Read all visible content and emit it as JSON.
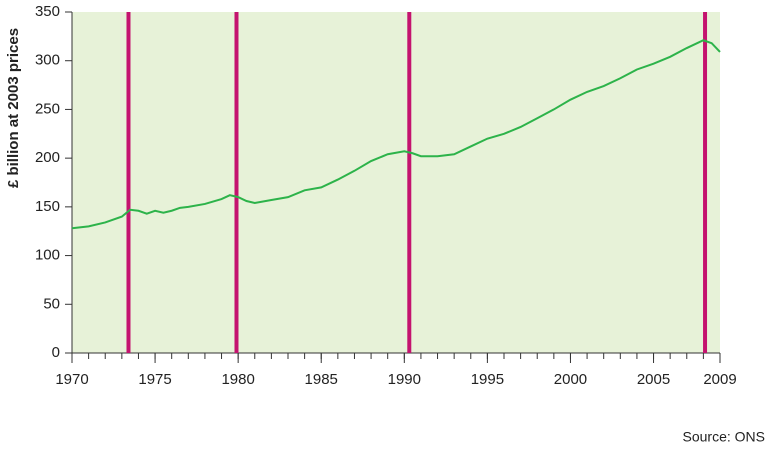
{
  "chart_data": {
    "type": "line",
    "y_label": "£ billion at 2003 prices",
    "source": "Source: ONS",
    "x": [
      1970,
      1971,
      1972,
      1973,
      1973.5,
      1974,
      1974.5,
      1975,
      1975.5,
      1976,
      1976.5,
      1977,
      1978,
      1979,
      1979.5,
      1980,
      1980.5,
      1981,
      1982,
      1983,
      1984,
      1985,
      1986,
      1987,
      1988,
      1989,
      1990,
      1990.5,
      1991,
      1992,
      1993,
      1994,
      1995,
      1996,
      1997,
      1998,
      1999,
      2000,
      2001,
      2002,
      2003,
      2004,
      2005,
      2006,
      2007,
      2008,
      2008.5,
      2009
    ],
    "series": [
      {
        "color": "#2db34a",
        "values": [
          128,
          130,
          134,
          140,
          147,
          146,
          143,
          146,
          144,
          146,
          149,
          150,
          153,
          158,
          162,
          160,
          156,
          154,
          157,
          160,
          167,
          170,
          178,
          187,
          197,
          204,
          207,
          205,
          202,
          202,
          204,
          212,
          220,
          225,
          232,
          241,
          250,
          260,
          268,
          274,
          282,
          291,
          297,
          304,
          313,
          321,
          318,
          309
        ]
      }
    ],
    "recession_lines": {
      "color": "#c4136f",
      "x": [
        1973.4,
        1979.9,
        1990.3,
        2008.1
      ]
    },
    "xlim": [
      1970,
      2009
    ],
    "xticks": [
      1970,
      1975,
      1980,
      1985,
      1990,
      1995,
      2000,
      2005,
      2009
    ],
    "ylim": [
      0,
      350
    ],
    "yticks": [
      0,
      50,
      100,
      150,
      200,
      250,
      300,
      350
    ],
    "background": "#e7f2d8"
  }
}
